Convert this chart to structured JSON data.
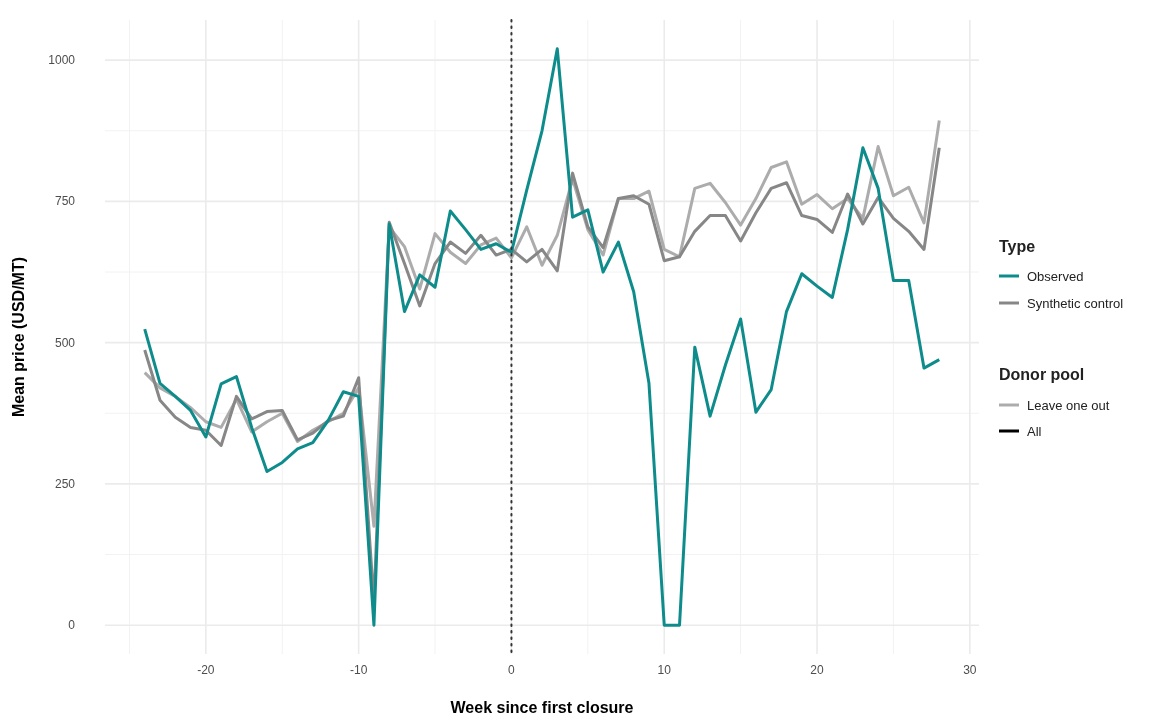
{
  "chart_data": {
    "type": "line",
    "xlabel": "Week since first closure",
    "ylabel": "Mean price (USD/MT)",
    "legend_title": "Type",
    "legend": "right",
    "grid": true,
    "line_style": "solid",
    "x": [
      -24,
      -23,
      -22,
      -21,
      -20,
      -19,
      -18,
      -17,
      -16,
      -15,
      -14,
      -13,
      -12,
      -11,
      -10,
      -9,
      -8,
      -7,
      -6,
      -5,
      -4,
      -3,
      -2,
      -1,
      0,
      1,
      2,
      3,
      4,
      5,
      6,
      7,
      8,
      9,
      10,
      11,
      12,
      13,
      14,
      15,
      16,
      17,
      18,
      19,
      20,
      21,
      22,
      23,
      24,
      25,
      26,
      27,
      28
    ],
    "xlim": [
      -26.6,
      30.6
    ],
    "xticks": [
      -20,
      -10,
      0,
      10,
      20,
      30
    ],
    "ylim": [
      -51,
      1071
    ],
    "yticks": [
      0,
      250,
      500,
      750,
      1000
    ],
    "series": [
      {
        "name": "Leave one out",
        "color": "#acacac",
        "values": [
          447,
          420,
          405,
          385,
          360,
          350,
          400,
          342,
          360,
          375,
          325,
          345,
          360,
          375,
          420,
          175,
          705,
          670,
          595,
          693,
          660,
          640,
          673,
          685,
          650,
          705,
          637,
          690,
          790,
          700,
          655,
          755,
          755,
          768,
          665,
          652,
          773,
          782,
          748,
          708,
          755,
          810,
          820,
          745,
          762,
          737,
          755,
          720,
          847,
          760,
          775,
          712,
          893
        ]
      },
      {
        "name": "Synthetic control",
        "color": "#878787",
        "values": [
          487,
          398,
          368,
          350,
          345,
          318,
          405,
          365,
          378,
          380,
          328,
          340,
          362,
          370,
          438,
          40,
          713,
          640,
          565,
          640,
          678,
          658,
          690,
          655,
          665,
          643,
          665,
          627,
          800,
          705,
          668,
          755,
          760,
          745,
          645,
          652,
          697,
          725,
          725,
          680,
          730,
          773,
          783,
          725,
          718,
          695,
          763,
          710,
          757,
          720,
          697,
          665,
          845
        ]
      },
      {
        "name": "Observed",
        "color": "#0e8c8c",
        "values": [
          524,
          428,
          405,
          380,
          333,
          427,
          440,
          350,
          272,
          288,
          312,
          323,
          362,
          413,
          405,
          0,
          710,
          555,
          620,
          598,
          733,
          700,
          665,
          675,
          660,
          770,
          875,
          1020,
          722,
          735,
          625,
          678,
          590,
          428,
          0,
          0,
          492,
          370,
          460,
          542,
          377,
          417,
          555,
          622,
          600,
          580,
          700,
          845,
          773,
          610,
          610,
          455,
          470
        ]
      }
    ],
    "ref_lines": [
      {
        "axis": "x",
        "value": 0,
        "color": "#333333",
        "line_style": "dotted"
      }
    ],
    "annotations": [
      "Donor pool",
      "All"
    ]
  }
}
